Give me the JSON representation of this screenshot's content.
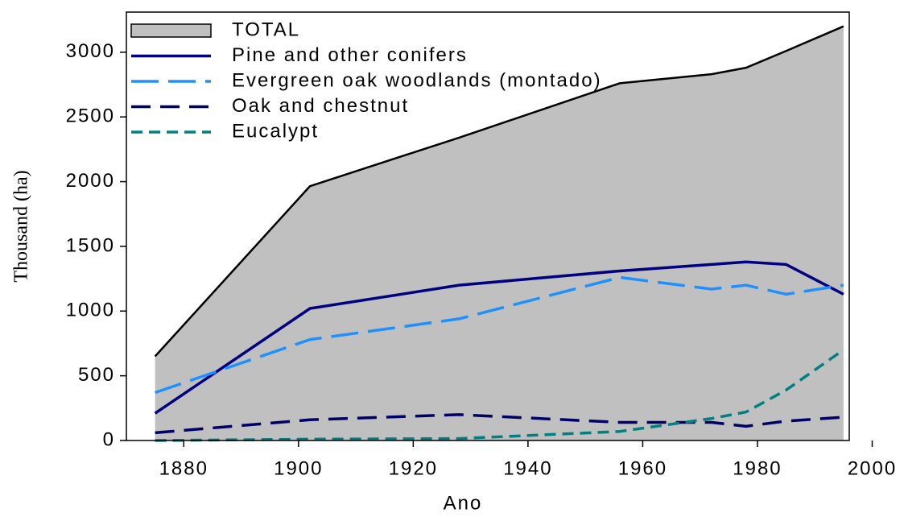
{
  "chart_data": {
    "type": "line",
    "x_label": "Ano",
    "y_label": "Thousand (ha)",
    "x": [
      1875,
      1902,
      1928,
      1956,
      1972,
      1978,
      1985,
      1995
    ],
    "series": [
      {
        "name": "TOTAL",
        "color": "#c0c0c0",
        "area": true,
        "values": [
          650,
          1965,
          2340,
          2760,
          2830,
          2880,
          3010,
          3200
        ]
      },
      {
        "name": "Pine and other conifers",
        "color": "#000080",
        "values": [
          210,
          1020,
          1200,
          1310,
          1360,
          1380,
          1360,
          1130
        ]
      },
      {
        "name": "Evergreen oak woodlands (montado)",
        "color": "#1e90ff",
        "values": [
          370,
          780,
          940,
          1260,
          1170,
          1200,
          1130,
          1200
        ]
      },
      {
        "name": "Oak and chestnut",
        "color": "#000066",
        "values": [
          60,
          160,
          200,
          140,
          140,
          110,
          150,
          180
        ]
      },
      {
        "name": "Eucalypt",
        "color": "#008080",
        "values": [
          0,
          10,
          15,
          70,
          170,
          220,
          390,
          700
        ]
      }
    ],
    "xlim": [
      1870,
      1996
    ],
    "xticks": [
      1880,
      1900,
      1920,
      1940,
      1960,
      1980,
      2000
    ],
    "ylim": [
      0,
      3310
    ],
    "yticks": [
      0,
      500,
      1000,
      1500,
      2000,
      2500,
      3000
    ],
    "legend": "upper left"
  }
}
